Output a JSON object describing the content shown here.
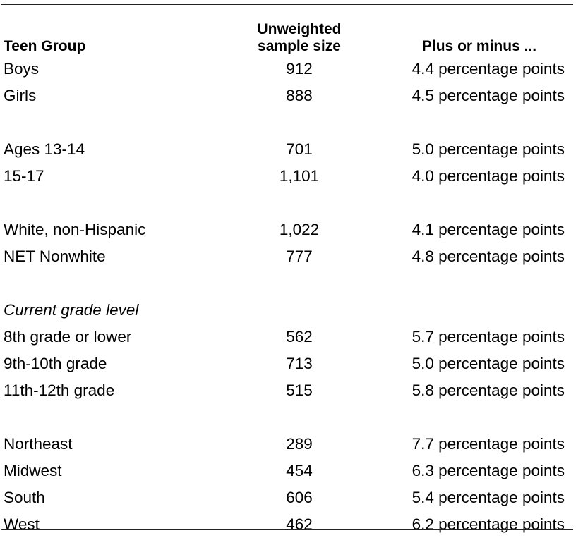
{
  "header": {
    "group": "Teen Group",
    "sample_line1": "Unweighted",
    "sample_line2": "sample size",
    "moe": "Plus or minus ..."
  },
  "rows": [
    {
      "label": "Boys",
      "size": "912",
      "moe": "4.4 percentage points"
    },
    {
      "label": "Girls",
      "size": "888",
      "moe": "4.5 percentage points"
    },
    {
      "label": "",
      "size": "",
      "moe": ""
    },
    {
      "label": "Ages 13-14",
      "size": "701",
      "moe": "5.0 percentage points"
    },
    {
      "label": "15-17",
      "size": "1,101",
      "moe": "4.0 percentage points"
    },
    {
      "label": "",
      "size": "",
      "moe": ""
    },
    {
      "label": "White, non-Hispanic",
      "size": "1,022",
      "moe": "4.1 percentage points"
    },
    {
      "label": "NET Nonwhite",
      "size": "777",
      "moe": "4.8 percentage points"
    },
    {
      "label": "",
      "size": "",
      "moe": ""
    },
    {
      "label": "Current grade level",
      "size": "",
      "moe": "",
      "italic": true
    },
    {
      "label": "8th grade or lower",
      "size": "562",
      "moe": "5.7 percentage points"
    },
    {
      "label": "9th-10th grade",
      "size": "713",
      "moe": "5.0 percentage points"
    },
    {
      "label": "11th-12th grade",
      "size": "515",
      "moe": "5.8 percentage points"
    },
    {
      "label": "",
      "size": "",
      "moe": ""
    },
    {
      "label": "Northeast",
      "size": "289",
      "moe": "7.7 percentage points"
    },
    {
      "label": "Midwest",
      "size": "454",
      "moe": "6.3 percentage points"
    },
    {
      "label": "South",
      "size": "606",
      "moe": "5.4 percentage points"
    },
    {
      "label": "West",
      "size": "462",
      "moe": "6.2 percentage points"
    }
  ]
}
